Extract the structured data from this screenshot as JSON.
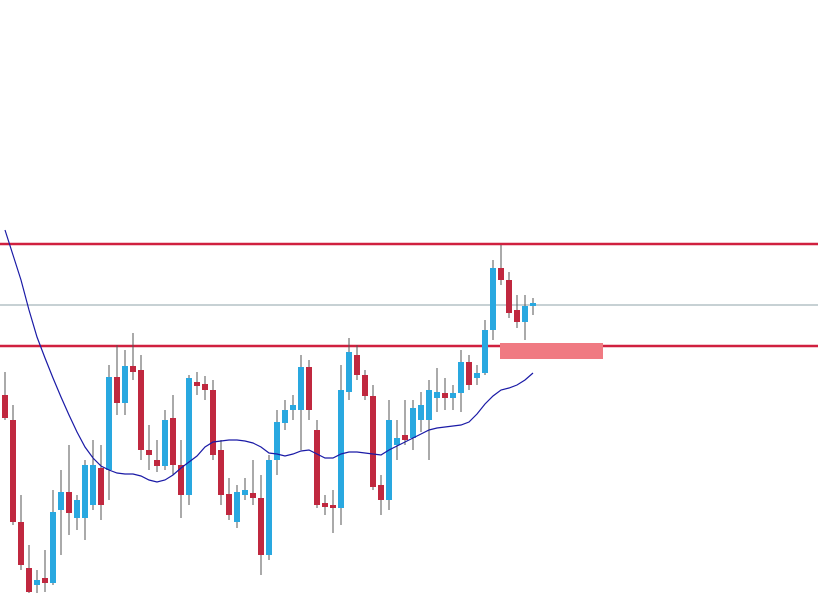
{
  "chart_data": {
    "type": "candlestick",
    "ylim": [
      0,
      593
    ],
    "up_color": "#29a8e0",
    "down_color": "#c0283f",
    "open": [
      198,
      173,
      71,
      25,
      8,
      15,
      10,
      83,
      101,
      75,
      75,
      88,
      125,
      123,
      216,
      190,
      227,
      223,
      143,
      133,
      127,
      175,
      128,
      98,
      211,
      209,
      203,
      143,
      99,
      71,
      98,
      100,
      95,
      38,
      133,
      170,
      183,
      183,
      226,
      163,
      90,
      88,
      85,
      201,
      238,
      218,
      197,
      108,
      93,
      148,
      158,
      155,
      173,
      173,
      195,
      200,
      195,
      200,
      231,
      215,
      220,
      263,
      325,
      313,
      283,
      271,
      287
    ],
    "high": [
      221,
      188,
      98,
      48,
      23,
      43,
      103,
      123,
      148,
      98,
      133,
      153,
      148,
      228,
      248,
      243,
      260,
      238,
      168,
      153,
      183,
      198,
      153,
      218,
      221,
      217,
      213,
      153,
      115,
      108,
      115,
      133,
      118,
      138,
      183,
      193,
      198,
      238,
      233,
      173,
      98,
      103,
      228,
      255,
      248,
      223,
      208,
      118,
      193,
      173,
      193,
      193,
      201,
      213,
      225,
      215,
      208,
      243,
      238,
      228,
      273,
      333,
      348,
      321,
      298,
      298,
      295
    ],
    "low": [
      173,
      68,
      23,
      0,
      0,
      1,
      8,
      38,
      58,
      63,
      53,
      83,
      73,
      93,
      178,
      178,
      213,
      133,
      123,
      121,
      123,
      118,
      75,
      88,
      198,
      193,
      133,
      88,
      73,
      65,
      93,
      88,
      18,
      33,
      118,
      163,
      173,
      143,
      173,
      85,
      78,
      60,
      68,
      193,
      213,
      193,
      103,
      78,
      83,
      133,
      148,
      143,
      161,
      133,
      181,
      183,
      183,
      181,
      203,
      208,
      218,
      253,
      308,
      275,
      265,
      253,
      278
    ],
    "close": [
      175,
      71,
      28,
      1,
      13,
      10,
      81,
      101,
      80,
      93,
      128,
      128,
      88,
      216,
      190,
      227,
      221,
      143,
      138,
      127,
      173,
      128,
      98,
      215,
      207,
      203,
      138,
      98,
      78,
      101,
      103,
      95,
      38,
      133,
      171,
      183,
      188,
      226,
      183,
      88,
      86,
      85,
      203,
      241,
      218,
      197,
      106,
      93,
      173,
      155,
      153,
      185,
      188,
      203,
      201,
      195,
      200,
      231,
      208,
      220,
      263,
      325,
      313,
      280,
      271,
      287,
      290
    ],
    "moving_average": {
      "color": "#1a1aa6",
      "values": [
        363,
        338,
        313,
        283,
        256,
        235,
        215,
        196,
        178,
        161,
        146,
        135,
        127,
        123,
        120,
        119,
        119,
        117,
        113,
        111,
        113,
        118,
        125,
        131,
        137,
        146,
        151,
        152,
        153,
        153,
        152,
        150,
        146,
        140,
        139,
        137,
        139,
        142,
        143,
        139,
        135,
        135,
        139,
        141,
        141,
        140,
        139,
        138,
        143,
        147,
        151,
        155,
        159,
        163,
        165,
        166,
        167,
        168,
        171,
        179,
        189,
        197,
        203,
        205,
        208,
        213,
        220
      ]
    },
    "levels": [
      {
        "value": 349,
        "color": "#d0203f"
      },
      {
        "value": 247,
        "color": "#d0203f"
      },
      {
        "value": 288,
        "color": "#8fa3a8"
      }
    ],
    "zone": {
      "top": 250,
      "bottom": 234,
      "color": "#f07a82"
    }
  }
}
